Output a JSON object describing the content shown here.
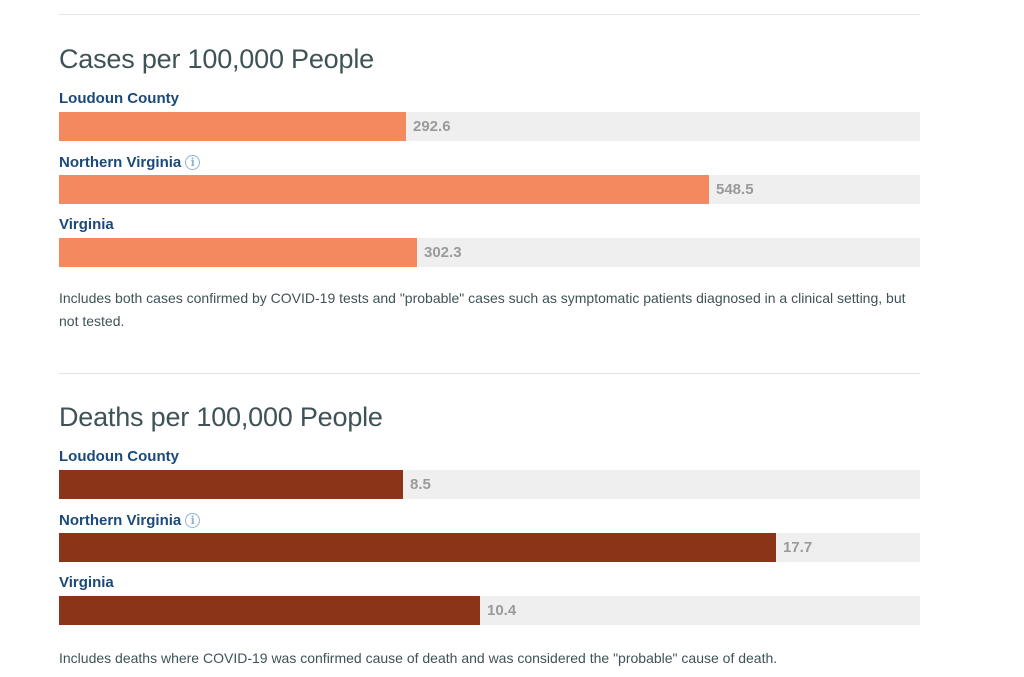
{
  "chart_data": [
    {
      "type": "bar",
      "orientation": "horizontal",
      "title": "Cases per 100,000 People",
      "categories": [
        "Loudoun County",
        "Northern Virginia",
        "Virginia"
      ],
      "values": [
        292.6,
        548.5,
        302.3
      ],
      "value_labels": [
        "292.6",
        "548.5",
        "302.3"
      ],
      "info_icon_on": [
        "Northern Virginia"
      ],
      "xlim": [
        0,
        727
      ],
      "grid": false,
      "bar_color": "#f4895f",
      "track_color": "#efefef",
      "note": "Includes both cases confirmed by COVID-19 tests and \"probable\" cases such as symptomatic patients diagnosed in a clinical setting, but not tested."
    },
    {
      "type": "bar",
      "orientation": "horizontal",
      "title": "Deaths per 100,000 People",
      "categories": [
        "Loudoun County",
        "Northern Virginia",
        "Virginia"
      ],
      "values": [
        8.5,
        17.7,
        10.4
      ],
      "value_labels": [
        "8.5",
        "17.7",
        "10.4"
      ],
      "info_icon_on": [
        "Northern Virginia"
      ],
      "xlim": [
        0,
        21.25
      ],
      "grid": false,
      "bar_color": "#8c3418",
      "track_color": "#efefef",
      "note": "Includes deaths where COVID-19 was confirmed cause of death and was considered the \"probable\" cause of death."
    }
  ],
  "icons": {
    "info": "i"
  }
}
